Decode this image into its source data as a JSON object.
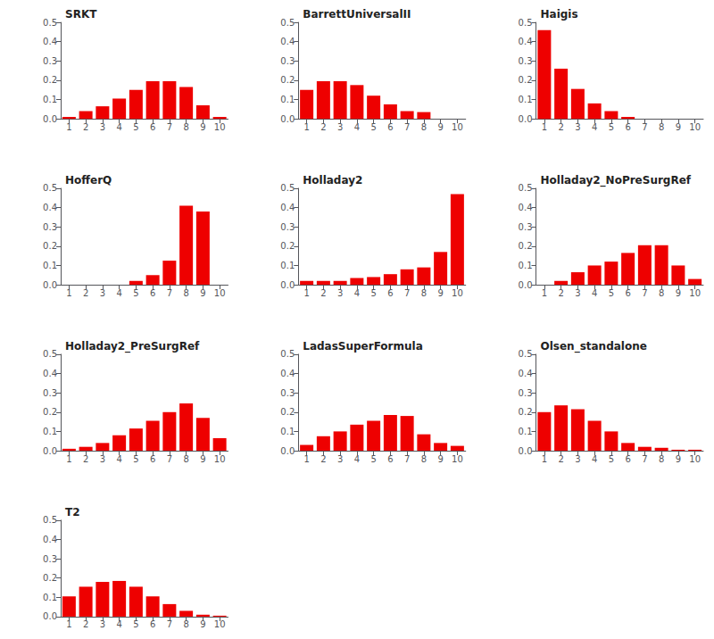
{
  "chart_data": [
    {
      "type": "bar",
      "title": "SRKT",
      "x": [
        1,
        2,
        3,
        4,
        5,
        6,
        7,
        8,
        9,
        10
      ],
      "values": [
        0.01,
        0.04,
        0.065,
        0.105,
        0.15,
        0.195,
        0.195,
        0.165,
        0.07,
        0.01
      ],
      "color": "#ee0000",
      "xlim": [
        0.5,
        10.5
      ],
      "xticks": [
        1,
        2,
        3,
        4,
        5,
        6,
        7,
        8,
        9,
        10
      ],
      "ylim": [
        0.0,
        0.5
      ],
      "yticks": [
        {
          "value": 0,
          "label": "0.0"
        },
        0.1,
        0.2,
        0.3,
        0.4,
        0.5
      ],
      "grid": false
    },
    {
      "type": "bar",
      "title": "BarrettUniversalII",
      "x": [
        1,
        2,
        3,
        4,
        5,
        6,
        7,
        8,
        9,
        10
      ],
      "values": [
        0.15,
        0.195,
        0.195,
        0.175,
        0.12,
        0.075,
        0.04,
        0.035,
        0.0,
        0.0
      ],
      "color": "#ee0000",
      "xlim": [
        0.5,
        10.5
      ],
      "xticks": [
        1,
        2,
        3,
        4,
        5,
        6,
        7,
        8,
        9,
        10
      ],
      "ylim": [
        0.0,
        0.5
      ],
      "yticks": [
        {
          "value": 0,
          "label": "0.0"
        },
        0.1,
        0.2,
        0.3,
        0.4,
        0.5
      ],
      "grid": false
    },
    {
      "type": "bar",
      "title": "Haigis",
      "x": [
        1,
        2,
        3,
        4,
        5,
        6,
        7,
        8,
        9,
        10
      ],
      "values": [
        0.46,
        0.26,
        0.155,
        0.08,
        0.04,
        0.01,
        0.0,
        0.0,
        0.0,
        0.0
      ],
      "color": "#ee0000",
      "xlim": [
        0.5,
        10.5
      ],
      "xticks": [
        1,
        2,
        3,
        4,
        5,
        6,
        7,
        8,
        9,
        10
      ],
      "ylim": [
        0.0,
        0.5
      ],
      "yticks": [
        {
          "value": 0,
          "label": "0.0"
        },
        0.1,
        0.2,
        0.3,
        0.4,
        0.5
      ],
      "grid": false
    },
    {
      "type": "bar",
      "title": "HofferQ",
      "x": [
        1,
        2,
        3,
        4,
        5,
        6,
        7,
        8,
        9,
        10
      ],
      "values": [
        0.0,
        0.0,
        0.0,
        0.0,
        0.02,
        0.05,
        0.125,
        0.41,
        0.38,
        0.0
      ],
      "color": "#ee0000",
      "xlim": [
        0.5,
        10.5
      ],
      "xticks": [
        1,
        2,
        3,
        4,
        5,
        6,
        7,
        8,
        9,
        10
      ],
      "ylim": [
        0.0,
        0.5
      ],
      "yticks": [
        {
          "value": 0,
          "label": "0.0"
        },
        0.1,
        0.2,
        0.3,
        0.4,
        0.5
      ],
      "grid": false
    },
    {
      "type": "bar",
      "title": "Holladay2",
      "x": [
        1,
        2,
        3,
        4,
        5,
        6,
        7,
        8,
        9,
        10
      ],
      "values": [
        0.02,
        0.02,
        0.02,
        0.035,
        0.04,
        0.055,
        0.08,
        0.09,
        0.17,
        0.47
      ],
      "color": "#ee0000",
      "xlim": [
        0.5,
        10.5
      ],
      "xticks": [
        1,
        2,
        3,
        4,
        5,
        6,
        7,
        8,
        9,
        10
      ],
      "ylim": [
        0.0,
        0.5
      ],
      "yticks": [
        {
          "value": 0,
          "label": "0.0"
        },
        0.1,
        0.2,
        0.3,
        0.4,
        0.5
      ],
      "grid": false
    },
    {
      "type": "bar",
      "title": "Holladay2_NoPreSurgRef",
      "x": [
        1,
        2,
        3,
        4,
        5,
        6,
        7,
        8,
        9,
        10
      ],
      "values": [
        0.0,
        0.02,
        0.065,
        0.1,
        0.12,
        0.165,
        0.205,
        0.205,
        0.1,
        0.03
      ],
      "color": "#ee0000",
      "xlim": [
        0.5,
        10.5
      ],
      "xticks": [
        1,
        2,
        3,
        4,
        5,
        6,
        7,
        8,
        9,
        10
      ],
      "ylim": [
        0.0,
        0.5
      ],
      "yticks": [
        {
          "value": 0,
          "label": "0.0"
        },
        0.1,
        0.2,
        0.3,
        0.4,
        0.5
      ],
      "grid": false
    },
    {
      "type": "bar",
      "title": "Holladay2_PreSurgRef",
      "x": [
        1,
        2,
        3,
        4,
        5,
        6,
        7,
        8,
        9,
        10
      ],
      "values": [
        0.01,
        0.02,
        0.04,
        0.08,
        0.115,
        0.155,
        0.2,
        0.245,
        0.17,
        0.065
      ],
      "color": "#ee0000",
      "xlim": [
        0.5,
        10.5
      ],
      "xticks": [
        1,
        2,
        3,
        4,
        5,
        6,
        7,
        8,
        9,
        10
      ],
      "ylim": [
        0.0,
        0.5
      ],
      "yticks": [
        {
          "value": 0,
          "label": "0.0"
        },
        0.1,
        0.2,
        0.3,
        0.4,
        0.5
      ],
      "grid": false
    },
    {
      "type": "bar",
      "title": "LadasSuperFormula",
      "x": [
        1,
        2,
        3,
        4,
        5,
        6,
        7,
        8,
        9,
        10
      ],
      "values": [
        0.03,
        0.075,
        0.1,
        0.135,
        0.155,
        0.185,
        0.18,
        0.085,
        0.04,
        0.025
      ],
      "color": "#ee0000",
      "xlim": [
        0.5,
        10.5
      ],
      "xticks": [
        1,
        2,
        3,
        4,
        5,
        6,
        7,
        8,
        9,
        10
      ],
      "ylim": [
        0.0,
        0.5
      ],
      "yticks": [
        {
          "value": 0,
          "label": "0.0"
        },
        0.1,
        0.2,
        0.3,
        0.4,
        0.5
      ],
      "grid": false
    },
    {
      "type": "bar",
      "title": "Olsen_standalone",
      "x": [
        1,
        2,
        3,
        4,
        5,
        6,
        7,
        8,
        9,
        10
      ],
      "values": [
        0.2,
        0.235,
        0.215,
        0.155,
        0.1,
        0.04,
        0.02,
        0.015,
        0.005,
        0.005
      ],
      "color": "#ee0000",
      "xlim": [
        0.5,
        10.5
      ],
      "xticks": [
        1,
        2,
        3,
        4,
        5,
        6,
        7,
        8,
        9,
        10
      ],
      "ylim": [
        0.0,
        0.5
      ],
      "yticks": [
        {
          "value": 0,
          "label": "0.0"
        },
        0.1,
        0.2,
        0.3,
        0.4,
        0.5
      ],
      "grid": false
    },
    {
      "type": "bar",
      "title": "T2",
      "x": [
        1,
        2,
        3,
        4,
        5,
        6,
        7,
        8,
        9,
        10
      ],
      "values": [
        0.105,
        0.155,
        0.18,
        0.185,
        0.155,
        0.105,
        0.065,
        0.03,
        0.01,
        0.005
      ],
      "color": "#ee0000",
      "xlim": [
        0.5,
        10.5
      ],
      "xticks": [
        1,
        2,
        3,
        4,
        5,
        6,
        7,
        8,
        9,
        10
      ],
      "ylim": [
        0.0,
        0.5
      ],
      "yticks": [
        {
          "value": 0,
          "label": "0.0"
        },
        0.1,
        0.2,
        0.3,
        0.4,
        0.5
      ],
      "grid": false
    }
  ]
}
